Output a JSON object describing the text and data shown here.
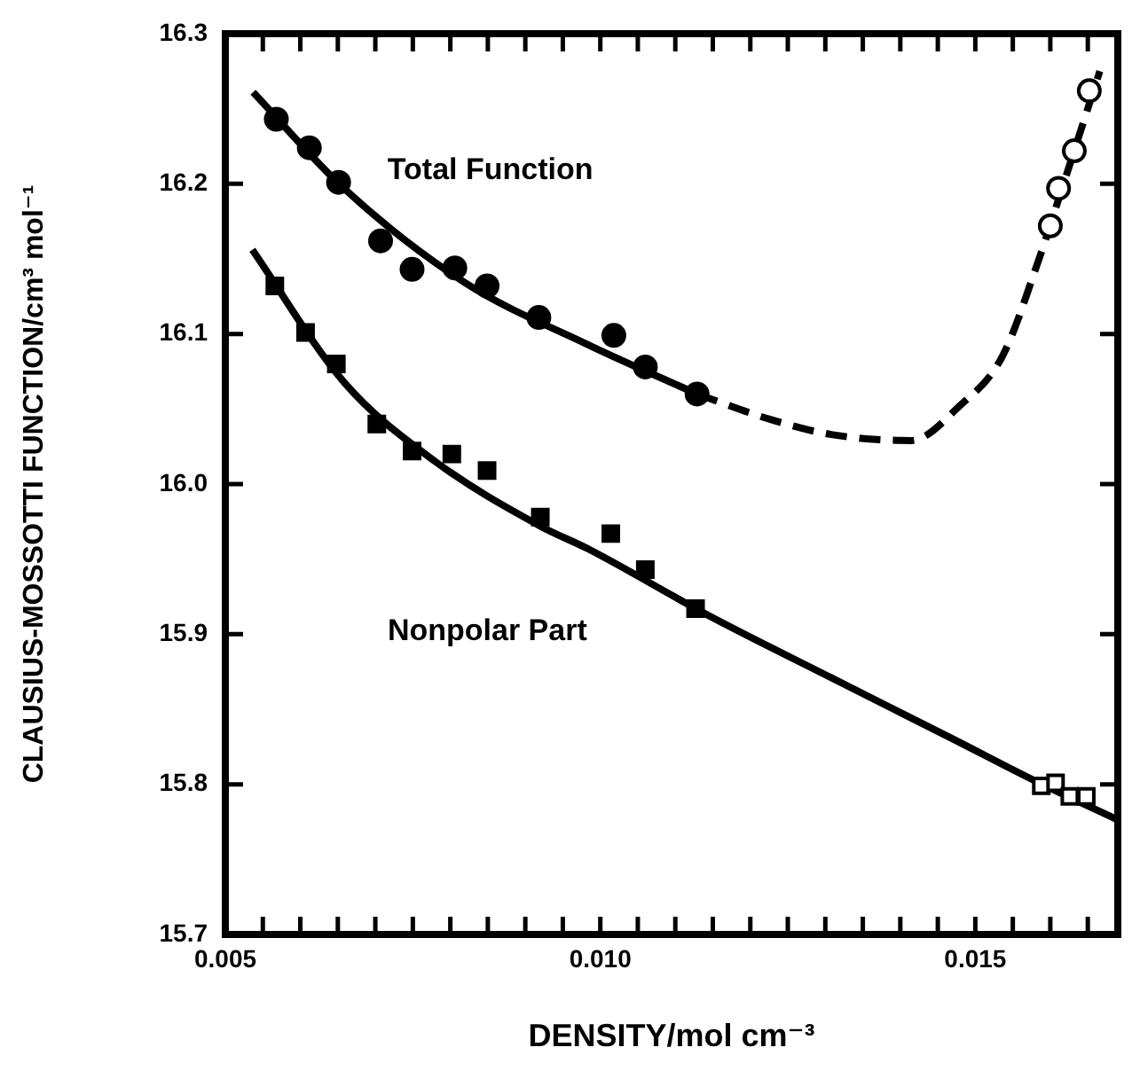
{
  "chart_data": {
    "type": "scatter",
    "xlabel": "DENSITY/mol cm⁻³",
    "ylabel": "CLAUSIUS-MOSSOTTI FUNCTION/cm³ mol⁻¹",
    "xlim": [
      0.005,
      0.0169
    ],
    "ylim": [
      15.7,
      16.3
    ],
    "xticks": [
      0.005,
      {
        "value": 0.0055,
        "label": null
      },
      {
        "value": 0.006,
        "label": null
      },
      {
        "value": 0.0065,
        "label": null
      },
      {
        "value": 0.007,
        "label": null
      },
      {
        "value": 0.0075,
        "label": null
      },
      {
        "value": 0.008,
        "label": null
      },
      {
        "value": 0.0085,
        "label": null
      },
      {
        "value": 0.009,
        "label": null
      },
      {
        "value": 0.0095,
        "label": null
      },
      {
        "value": 0.01,
        "label": "0.010"
      },
      {
        "value": 0.0105,
        "label": null
      },
      {
        "value": 0.011,
        "label": null
      },
      {
        "value": 0.0115,
        "label": null
      },
      {
        "value": 0.012,
        "label": null
      },
      {
        "value": 0.0125,
        "label": null
      },
      {
        "value": 0.013,
        "label": null
      },
      {
        "value": 0.0135,
        "label": null
      },
      {
        "value": 0.014,
        "label": null
      },
      {
        "value": 0.0145,
        "label": null
      },
      {
        "value": 0.015,
        "label": "0.015"
      },
      {
        "value": 0.0155,
        "label": null
      },
      {
        "value": 0.016,
        "label": null
      },
      {
        "value": 0.0165,
        "label": null
      }
    ],
    "yticks": [
      {
        "value": 15.7,
        "label": "15.7"
      },
      {
        "value": 15.8,
        "label": "15.8"
      },
      {
        "value": 15.9,
        "label": "15.9"
      },
      {
        "value": 16.0,
        "label": "16.0"
      },
      {
        "value": 16.1,
        "label": "16.1"
      },
      {
        "value": 16.2,
        "label": "16.2"
      },
      {
        "value": 16.3,
        "label": "16.3"
      }
    ],
    "grid": false,
    "legend": false,
    "series": [
      {
        "name": "Total Function",
        "marker": "circle",
        "color": "#000000",
        "x": [
          0.00568,
          0.00612,
          0.00651,
          0.00707,
          0.00749,
          0.00806,
          0.00849,
          0.00918,
          0.01018,
          0.0106,
          0.01129
        ],
        "values": [
          16.243,
          16.224,
          16.201,
          16.162,
          16.143,
          16.144,
          16.132,
          16.111,
          16.099,
          16.078,
          16.06
        ]
      },
      {
        "name": "Nonpolar Part",
        "marker": "square",
        "color": "#000000",
        "x": [
          0.00566,
          0.00607,
          0.00648,
          0.00702,
          0.00749,
          0.00802,
          0.00849,
          0.0092,
          0.01014,
          0.0106,
          0.01127
        ],
        "values": [
          16.132,
          16.101,
          16.08,
          16.04,
          16.022,
          16.02,
          16.009,
          15.978,
          15.967,
          15.943,
          15.917
        ]
      },
      {
        "marker": "circle",
        "color": "#000000",
        "x": [
          0.016,
          0.01611,
          0.01632,
          0.01652
        ],
        "values": [
          16.172,
          16.197,
          16.222,
          16.262
        ]
      },
      {
        "marker": "square",
        "color": "#000000",
        "x": [
          0.01588,
          0.01607,
          0.01626,
          0.01648
        ],
        "values": [
          15.799,
          15.801,
          15.792,
          15.792
        ]
      },
      {
        "type": "line",
        "line_style": "solid",
        "color": "#000000",
        "x": [
          0.00537,
          0.00658,
          0.0082,
          0.00983,
          0.01129
        ],
        "values": [
          16.261,
          16.197,
          16.134,
          16.093,
          16.06
        ]
      },
      {
        "type": "line",
        "line_style": "dashed",
        "color": "#000000",
        "x": [
          0.01129,
          0.01227,
          0.01308,
          0.01414,
          0.01479,
          0.01536,
          0.01585,
          0.01617,
          0.01666
        ],
        "values": [
          16.06,
          16.043,
          16.033,
          16.029,
          16.052,
          16.085,
          16.15,
          16.199,
          16.275
        ]
      },
      {
        "type": "line",
        "line_style": "solid",
        "color": "#000000",
        "x": [
          0.00536,
          0.00658,
          0.0078,
          0.0092,
          0.00983,
          0.01146,
          0.01308,
          0.01471,
          0.01585,
          0.01687
        ],
        "values": [
          16.156,
          16.068,
          16.015,
          15.972,
          15.957,
          15.912,
          15.871,
          15.83,
          15.801,
          15.777
        ]
      }
    ]
  }
}
